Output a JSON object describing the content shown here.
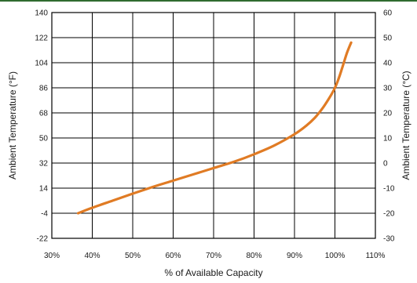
{
  "chart_data": {
    "type": "line",
    "xlabel": "% of Available Capacity",
    "ylabel_left": "Ambient Temperature (°F)",
    "ylabel_right": "Ambient Temperature (°C)",
    "xlim": [
      30,
      110
    ],
    "ylim_left": [
      -22,
      140
    ],
    "ylim_right": [
      -30,
      60
    ],
    "x_ticks": [
      30,
      40,
      50,
      60,
      70,
      80,
      90,
      100,
      110
    ],
    "x_tick_labels": [
      "30%",
      "40%",
      "50%",
      "60%",
      "70%",
      "80%",
      "90%",
      "100%",
      "110%"
    ],
    "y_left_ticks": [
      140,
      122,
      104,
      86,
      68,
      50,
      32,
      14,
      -4,
      -22
    ],
    "y_left_tick_labels": [
      "140",
      "122",
      "104",
      "86",
      "68",
      "50",
      "32",
      "14",
      "-4",
      "-22"
    ],
    "y_right_ticks": [
      60,
      50,
      40,
      30,
      20,
      10,
      0,
      -10,
      -20,
      -30
    ],
    "y_right_tick_labels": [
      "60",
      "50",
      "40",
      "30",
      "20",
      "10",
      "0",
      "-10",
      "-20",
      "-30"
    ],
    "grid": true,
    "series": [
      {
        "color": "#e07b24",
        "x": [
          36.5,
          40,
          45,
          50,
          55,
          60,
          65,
          70,
          75,
          80,
          85,
          90,
          93,
          95,
          97,
          99,
          100,
          101,
          102,
          103,
          104
        ],
        "y": [
          -20,
          -17.8,
          -15,
          -12.2,
          -9.5,
          -7,
          -4.5,
          -2,
          0.5,
          3.5,
          7,
          11.5,
          15,
          18,
          22,
          27,
          30,
          34,
          39,
          44,
          48
        ]
      }
    ]
  }
}
